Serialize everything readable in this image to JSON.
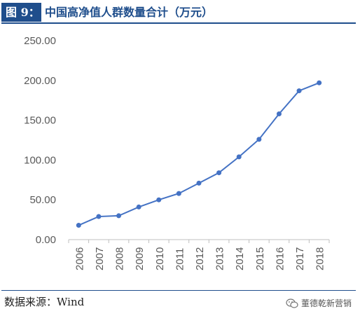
{
  "header": {
    "tag": "图 9：",
    "title": "中国高净值人群数量合计（万元）"
  },
  "footer": {
    "source": "数据来源：Wind",
    "watermark": "董德乾新营销"
  },
  "icons": {
    "watermark_icon": "wechat-icon"
  },
  "colors": {
    "brand": "#1f4e8c",
    "series": "#4472c4"
  },
  "chart_data": {
    "type": "line",
    "title": "",
    "xlabel": "",
    "ylabel": "",
    "x": [
      "2006",
      "2007",
      "2008",
      "2009",
      "2010",
      "2011",
      "2012",
      "2013",
      "2014",
      "2015",
      "2016",
      "2017",
      "2018"
    ],
    "series": [
      {
        "values": [
          18,
          29,
          30,
          41,
          50,
          58,
          71,
          84,
          104,
          126,
          158,
          187,
          197
        ]
      }
    ],
    "ylim": [
      0,
      250
    ],
    "yticks": [
      "0.00",
      "50.00",
      "100.00",
      "150.00",
      "200.00",
      "250.00"
    ],
    "grid": false,
    "legend": "none"
  }
}
